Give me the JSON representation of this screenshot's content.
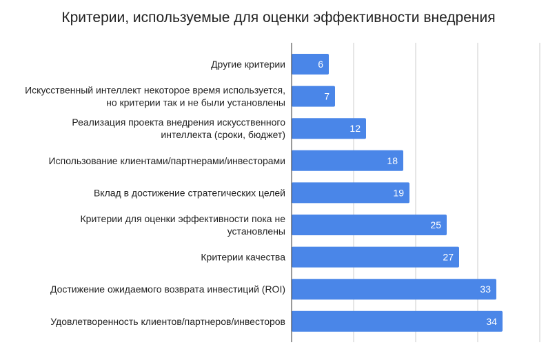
{
  "chart_data": {
    "type": "bar",
    "orientation": "horizontal",
    "title": "Критерии, используемые для оценки эффективности внедрения",
    "xlabel": "",
    "ylabel": "",
    "xlim": [
      0,
      40
    ],
    "grid": true,
    "legend": "none",
    "bar_color": "#4a86e8",
    "categories": [
      [
        "Другие критерии"
      ],
      [
        "Искусственный интеллект некоторое время используется,",
        "но критерии так и не были установлены"
      ],
      [
        "Реализация проекта внедрения искусственного",
        "интеллекта (сроки, бюджет)"
      ],
      [
        "Использование клиентами/партнерами/инвесторами"
      ],
      [
        "Вклад в достижение стратегических целей"
      ],
      [
        "Критерии для оценки эффективности пока не",
        "установлены"
      ],
      [
        "Критерии качества"
      ],
      [
        "Достижение ожидаемого возврата инвестиций (ROI)"
      ],
      [
        "Удовлетворенность клиентов/партнеров/инвесторов"
      ]
    ],
    "values": [
      6,
      7,
      12,
      18,
      19,
      25,
      27,
      33,
      34
    ],
    "value_labels": [
      "6",
      "7",
      "12",
      "18",
      "19",
      "25",
      "27",
      "33",
      "34"
    ]
  }
}
